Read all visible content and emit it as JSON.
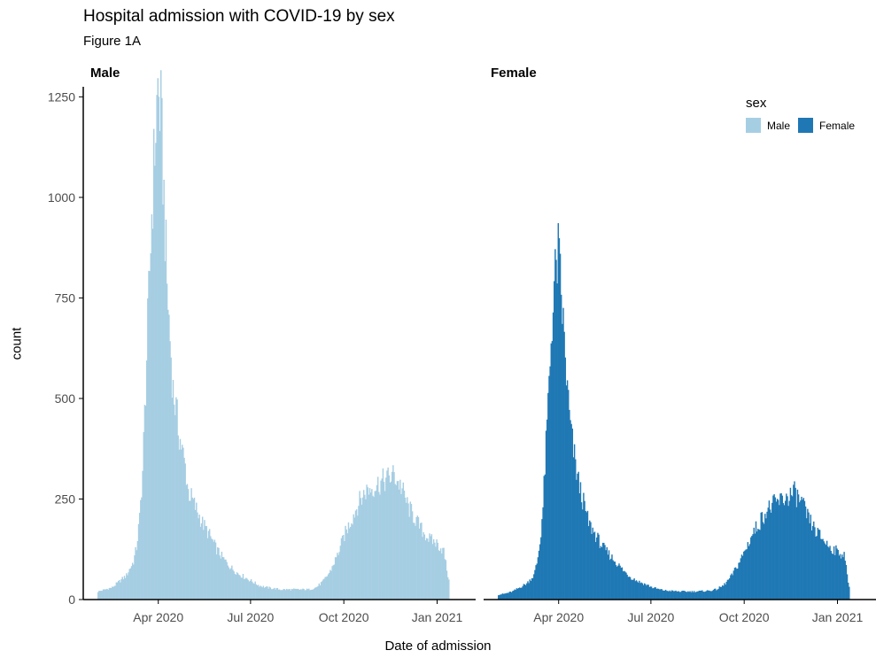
{
  "chart_data": {
    "type": "bar",
    "title": "Hospital admission with COVID-19 by sex",
    "subtitle": "Figure 1A",
    "xlabel": "Date of admission",
    "ylabel": "count",
    "ylim": [
      0,
      1275
    ],
    "y_ticks": [
      "0",
      "250",
      "500",
      "750",
      "1000",
      "1250"
    ],
    "x_ticks": [
      "Apr 2020",
      "Jul 2020",
      "Oct 2020",
      "Jan 2021"
    ],
    "x_range": [
      "2020-01-18",
      "2021-02-08"
    ],
    "legend": {
      "title": "sex",
      "position": "top-right",
      "entries": [
        "Male",
        "Female"
      ]
    },
    "colors": {
      "Male": "#a6cee3",
      "Female": "#1f78b4"
    },
    "grid": false,
    "bin_width_days": 1,
    "series": [
      {
        "name": "Male",
        "facet": "Male",
        "x": [
          "2020-02-01",
          "2020-02-08",
          "2020-02-15",
          "2020-02-22",
          "2020-02-29",
          "2020-03-07",
          "2020-03-10",
          "2020-03-13",
          "2020-03-16",
          "2020-03-19",
          "2020-03-22",
          "2020-03-25",
          "2020-03-28",
          "2020-03-31",
          "2020-04-03",
          "2020-04-06",
          "2020-04-09",
          "2020-04-12",
          "2020-04-15",
          "2020-04-18",
          "2020-04-21",
          "2020-04-24",
          "2020-04-27",
          "2020-04-30",
          "2020-05-07",
          "2020-05-14",
          "2020-05-21",
          "2020-05-28",
          "2020-06-04",
          "2020-06-11",
          "2020-06-18",
          "2020-06-25",
          "2020-07-02",
          "2020-07-09",
          "2020-07-16",
          "2020-07-30",
          "2020-08-13",
          "2020-08-27",
          "2020-09-03",
          "2020-09-10",
          "2020-09-17",
          "2020-09-24",
          "2020-10-01",
          "2020-10-08",
          "2020-10-15",
          "2020-10-22",
          "2020-10-29",
          "2020-11-05",
          "2020-11-12",
          "2020-11-19",
          "2020-11-26",
          "2020-12-03",
          "2020-12-10",
          "2020-12-17",
          "2020-12-24",
          "2020-12-31",
          "2021-01-07",
          "2021-01-12"
        ],
        "values": [
          20,
          25,
          30,
          45,
          60,
          95,
          130,
          200,
          320,
          530,
          750,
          960,
          1130,
          1270,
          1200,
          1000,
          780,
          650,
          520,
          470,
          410,
          370,
          330,
          270,
          230,
          190,
          160,
          125,
          100,
          80,
          65,
          55,
          45,
          35,
          30,
          25,
          25,
          25,
          30,
          45,
          70,
          110,
          160,
          200,
          240,
          270,
          280,
          290,
          300,
          310,
          280,
          230,
          200,
          170,
          150,
          140,
          120,
          45
        ]
      },
      {
        "name": "Female",
        "facet": "Female",
        "x": [
          "2020-02-01",
          "2020-02-08",
          "2020-02-15",
          "2020-02-22",
          "2020-02-29",
          "2020-03-07",
          "2020-03-10",
          "2020-03-13",
          "2020-03-16",
          "2020-03-19",
          "2020-03-22",
          "2020-03-25",
          "2020-03-28",
          "2020-03-31",
          "2020-04-03",
          "2020-04-06",
          "2020-04-09",
          "2020-04-12",
          "2020-04-15",
          "2020-04-18",
          "2020-04-21",
          "2020-04-24",
          "2020-04-27",
          "2020-04-30",
          "2020-05-07",
          "2020-05-14",
          "2020-05-21",
          "2020-05-28",
          "2020-06-04",
          "2020-06-11",
          "2020-06-18",
          "2020-06-25",
          "2020-07-02",
          "2020-07-09",
          "2020-07-16",
          "2020-07-30",
          "2020-08-13",
          "2020-08-27",
          "2020-09-03",
          "2020-09-10",
          "2020-09-17",
          "2020-09-24",
          "2020-10-01",
          "2020-10-08",
          "2020-10-15",
          "2020-10-22",
          "2020-10-29",
          "2020-11-05",
          "2020-11-12",
          "2020-11-19",
          "2020-11-26",
          "2020-12-03",
          "2020-12-10",
          "2020-12-17",
          "2020-12-24",
          "2020-12-31",
          "2021-01-07",
          "2021-01-12"
        ],
        "values": [
          12,
          15,
          20,
          30,
          40,
          60,
          90,
          140,
          230,
          380,
          540,
          700,
          800,
          860,
          760,
          640,
          520,
          430,
          370,
          320,
          280,
          250,
          220,
          190,
          160,
          130,
          110,
          90,
          70,
          55,
          45,
          38,
          30,
          25,
          22,
          20,
          20,
          22,
          25,
          35,
          55,
          85,
          120,
          160,
          190,
          220,
          235,
          245,
          255,
          265,
          240,
          200,
          170,
          150,
          130,
          120,
          110,
          30
        ]
      }
    ]
  },
  "facets": [
    "Male",
    "Female"
  ]
}
